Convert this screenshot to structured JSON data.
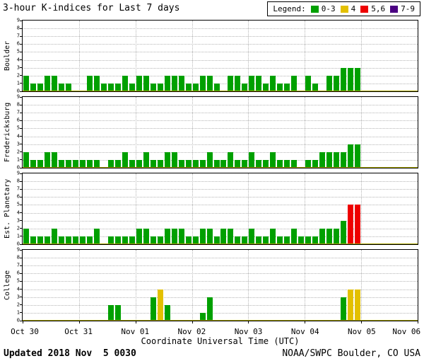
{
  "legend": {
    "label": "Legend:",
    "items": [
      {
        "label": "0-3",
        "color": "#00A000"
      },
      {
        "label": "4",
        "color": "#E3C000"
      },
      {
        "label": "5,6",
        "color": "#EE0000"
      },
      {
        "label": "7-9",
        "color": "#4B0082"
      }
    ]
  },
  "footer": {
    "updated": "Updated 2018 Nov  5 0030",
    "source": "NOAA/SWPC Boulder, CO USA"
  },
  "colors": {
    "bar_green": "#00A000",
    "bar_yellow": "#E3C000",
    "bar_red": "#EE0000",
    "bar_purple": "#4B0082",
    "grid": "#B5B5B5",
    "baseline": "#A8A400",
    "axis": "#000000"
  },
  "chart_data": {
    "type": "bar",
    "title": "3-hour K-indices for Last 7 days",
    "xlabel": "Coordinate Universal Time (UTC)",
    "interval_hours": 3,
    "ylim": [
      0,
      9
    ],
    "y_ticks": [
      0,
      1,
      2,
      3,
      4,
      5,
      6,
      7,
      8,
      9
    ],
    "grid": true,
    "slots_total": 56,
    "x_tick_labels": [
      "Oct 30",
      "Oct 31",
      "Nov 01",
      "Nov 02",
      "Nov 03",
      "Nov 04",
      "Nov 05",
      "Nov 06"
    ],
    "value_color_rule": {
      "0-3": "green",
      "4": "yellow",
      "5-6": "red",
      "7-9": "purple"
    },
    "series": [
      {
        "name": "Boulder",
        "values": [
          2,
          1,
          1,
          2,
          2,
          1,
          1,
          0,
          0,
          2,
          2,
          1,
          1,
          1,
          2,
          1,
          2,
          2,
          1,
          1,
          2,
          2,
          2,
          1,
          1,
          2,
          2,
          1,
          0,
          2,
          2,
          1,
          2,
          2,
          1,
          2,
          1,
          1,
          2,
          0,
          2,
          1,
          0,
          2,
          2,
          3,
          3,
          3
        ]
      },
      {
        "name": "Fredericksburg",
        "values": [
          2,
          1,
          1,
          2,
          2,
          1,
          1,
          1,
          1,
          1,
          1,
          0,
          1,
          1,
          2,
          1,
          1,
          2,
          1,
          1,
          2,
          2,
          1,
          1,
          1,
          1,
          2,
          1,
          1,
          2,
          1,
          1,
          2,
          1,
          1,
          2,
          1,
          1,
          1,
          0,
          1,
          1,
          2,
          2,
          2,
          2,
          3,
          3
        ]
      },
      {
        "name": "Est. Planetary",
        "values": [
          2,
          1,
          1,
          1,
          2,
          1,
          1,
          1,
          1,
          1,
          2,
          0,
          1,
          1,
          1,
          1,
          2,
          2,
          1,
          1,
          2,
          2,
          2,
          1,
          1,
          2,
          2,
          1,
          2,
          2,
          1,
          1,
          2,
          1,
          1,
          2,
          1,
          1,
          2,
          1,
          1,
          1,
          2,
          2,
          2,
          3,
          5,
          5
        ]
      },
      {
        "name": "College",
        "values": [
          0,
          0,
          0,
          0,
          0,
          0,
          0,
          0,
          0,
          0,
          0,
          0,
          2,
          2,
          0,
          0,
          0,
          0,
          3,
          4,
          2,
          0,
          0,
          0,
          0,
          1,
          3,
          0,
          0,
          0,
          0,
          0,
          0,
          0,
          0,
          0,
          0,
          0,
          0,
          0,
          0,
          0,
          0,
          0,
          0,
          3,
          4,
          4
        ]
      }
    ]
  }
}
